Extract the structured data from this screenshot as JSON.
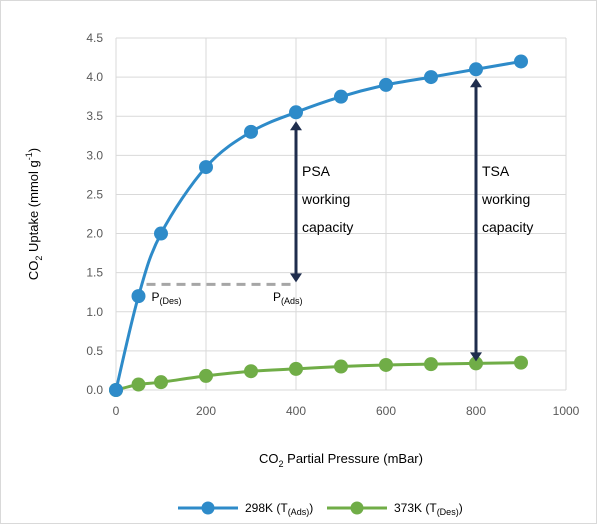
{
  "chart_data": {
    "type": "line",
    "xlabel_main": "CO",
    "xlabel_sub": "2",
    "xlabel_rest": " Partial Pressure (mBar)",
    "ylabel_main": "CO",
    "ylabel_sub": "2",
    "ylabel_mid": " Uptake (mmol g",
    "ylabel_sup": "-1",
    "ylabel_end": ")",
    "xlim": [
      0,
      1000
    ],
    "ylim": [
      0,
      4.5
    ],
    "x_ticks": [
      "0",
      "200",
      "400",
      "600",
      "800",
      "1000"
    ],
    "y_ticks": [
      "0.0",
      "0.5",
      "1.0",
      "1.5",
      "2.0",
      "2.5",
      "3.0",
      "3.5",
      "4.0",
      "4.5"
    ],
    "grid": true,
    "legend_position": "bottom",
    "series": [
      {
        "name_main": "298K (T",
        "name_sub": "(Ads)",
        "name_end": ")",
        "color": "#2E8BC9",
        "x": [
          0,
          50,
          100,
          200,
          300,
          400,
          500,
          600,
          700,
          800,
          900
        ],
        "y": [
          0.0,
          1.2,
          2.0,
          2.85,
          3.3,
          3.55,
          3.75,
          3.9,
          4.0,
          4.1,
          4.2
        ]
      },
      {
        "name_main": "373K (T",
        "name_sub": "(Des)",
        "name_end": ")",
        "color": "#70AD47",
        "x": [
          0,
          50,
          100,
          200,
          300,
          400,
          500,
          600,
          700,
          800,
          900
        ],
        "y": [
          0.0,
          0.07,
          0.1,
          0.18,
          0.24,
          0.27,
          0.3,
          0.32,
          0.33,
          0.34,
          0.35
        ]
      }
    ],
    "annotations": {
      "psa_lines": [
        "PSA",
        "working",
        "capacity"
      ],
      "tsa_lines": [
        "TSA",
        "working",
        "capacity"
      ],
      "p_des_main": "P",
      "p_des_sub": "(Des)",
      "p_ads_main": "P",
      "p_ads_sub": "(Ads)",
      "psa_arrow": {
        "x": 400,
        "y_top": 3.55,
        "y_bottom": 1.35
      },
      "tsa_arrow": {
        "x": 800,
        "y_top": 4.1,
        "y_bottom": 0.34
      },
      "dashed_line": {
        "x1": 50,
        "x2": 400,
        "y": 1.35
      },
      "arrow_color": "#1F2D4D",
      "dashed_color": "#A6A6A6"
    }
  }
}
